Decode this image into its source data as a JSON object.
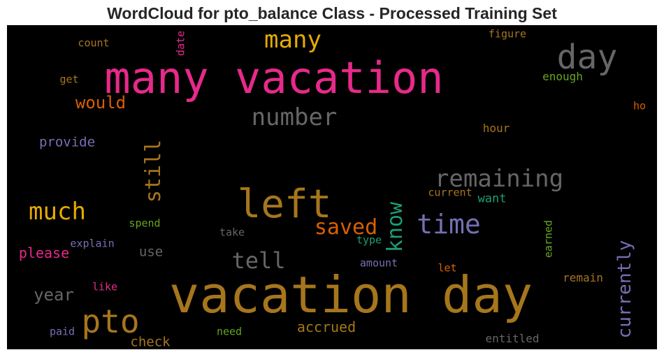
{
  "chart_data": {
    "type": "wordcloud",
    "title": "WordCloud for pto_balance Class - Processed Training Set",
    "background": "#000000",
    "colormap": {
      "pink": "#e7298a",
      "ochre": "#a6761d",
      "gray": "#666666",
      "gold": "#e6ab02",
      "orange": "#d95f02",
      "purple": "#7570b3",
      "teal": "#1b9e77",
      "green": "#66a61e"
    },
    "words": [
      {
        "text": "vacation day",
        "color": "#a6761d",
        "vertical": false
      },
      {
        "text": "many vacation",
        "color": "#e7298a",
        "vertical": false
      },
      {
        "text": "left",
        "color": "#a6761d",
        "vertical": false
      },
      {
        "text": "pto",
        "color": "#a6761d",
        "vertical": false
      },
      {
        "text": "day",
        "color": "#666666",
        "vertical": false
      },
      {
        "text": "time",
        "color": "#7570b3",
        "vertical": false
      },
      {
        "text": "much",
        "color": "#e6ab02",
        "vertical": false
      },
      {
        "text": "remaining",
        "color": "#666666",
        "vertical": false
      },
      {
        "text": "many",
        "color": "#e6ab02",
        "vertical": false
      },
      {
        "text": "number",
        "color": "#666666",
        "vertical": false
      },
      {
        "text": "saved",
        "color": "#d95f02",
        "vertical": false
      },
      {
        "text": "tell",
        "color": "#666666",
        "vertical": false
      },
      {
        "text": "know",
        "color": "#1b9e77",
        "vertical": true
      },
      {
        "text": "still",
        "color": "#a6761d",
        "vertical": true
      },
      {
        "text": "currently",
        "color": "#7570b3",
        "vertical": true
      },
      {
        "text": "would",
        "color": "#d95f02",
        "vertical": false
      },
      {
        "text": "year",
        "color": "#666666",
        "vertical": false
      },
      {
        "text": "accrued",
        "color": "#a6761d",
        "vertical": false
      },
      {
        "text": "please",
        "color": "#e7298a",
        "vertical": false
      },
      {
        "text": "provide",
        "color": "#7570b3",
        "vertical": false
      },
      {
        "text": "check",
        "color": "#a6761d",
        "vertical": false
      },
      {
        "text": "use",
        "color": "#666666",
        "vertical": false
      },
      {
        "text": "want",
        "color": "#1b9e77",
        "vertical": false
      },
      {
        "text": "remain",
        "color": "#a6761d",
        "vertical": false
      },
      {
        "text": "entitled",
        "color": "#666666",
        "vertical": false
      },
      {
        "text": "enough",
        "color": "#66a61e",
        "vertical": false
      },
      {
        "text": "hour",
        "color": "#a6761d",
        "vertical": false
      },
      {
        "text": "current",
        "color": "#a6761d",
        "vertical": false
      },
      {
        "text": "explain",
        "color": "#7570b3",
        "vertical": false
      },
      {
        "text": "take",
        "color": "#666666",
        "vertical": false
      },
      {
        "text": "amount",
        "color": "#7570b3",
        "vertical": false
      },
      {
        "text": "type",
        "color": "#1b9e77",
        "vertical": false
      },
      {
        "text": "need",
        "color": "#66a61e",
        "vertical": false
      },
      {
        "text": "like",
        "color": "#e7298a",
        "vertical": false
      },
      {
        "text": "paid",
        "color": "#7570b3",
        "vertical": false
      },
      {
        "text": "spend",
        "color": "#66a61e",
        "vertical": false
      },
      {
        "text": "let",
        "color": "#d95f02",
        "vertical": false
      },
      {
        "text": "earned",
        "color": "#66a61e",
        "vertical": true
      },
      {
        "text": "count",
        "color": "#a6761d",
        "vertical": false
      },
      {
        "text": "get",
        "color": "#a6761d",
        "vertical": false
      },
      {
        "text": "figure",
        "color": "#a6761d",
        "vertical": false
      },
      {
        "text": "ho",
        "color": "#d95f02",
        "vertical": false
      },
      {
        "text": "date",
        "color": "#e7298a",
        "vertical": true
      }
    ]
  }
}
